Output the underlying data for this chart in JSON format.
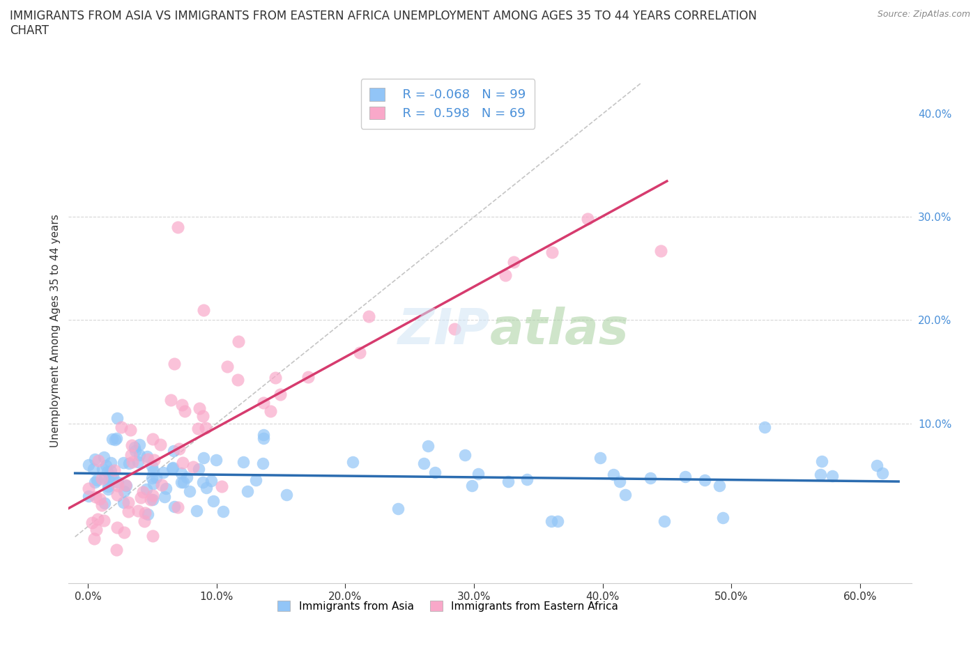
{
  "title": "IMMIGRANTS FROM ASIA VS IMMIGRANTS FROM EASTERN AFRICA UNEMPLOYMENT AMONG AGES 35 TO 44 YEARS CORRELATION\nCHART",
  "source": "Source: ZipAtlas.com",
  "ylabel": "Unemployment Among Ages 35 to 44 years",
  "legend_r_asia": "-0.068",
  "legend_n_asia": "99",
  "legend_r_africa": "0.598",
  "legend_n_africa": "69",
  "color_asia": "#92C5F7",
  "color_africa": "#F9A8C9",
  "trendline_asia_color": "#2B6CB0",
  "trendline_africa_color": "#D63B6E",
  "diag_color": "#BBBBBB",
  "watermark": "ZIPatlas",
  "background_color": "#FFFFFF",
  "grid_color": "#DDDDDD",
  "yaxis_label_color": "#4A90D9",
  "title_fontsize": 12,
  "source_fontsize": 9,
  "axis_fontsize": 11
}
